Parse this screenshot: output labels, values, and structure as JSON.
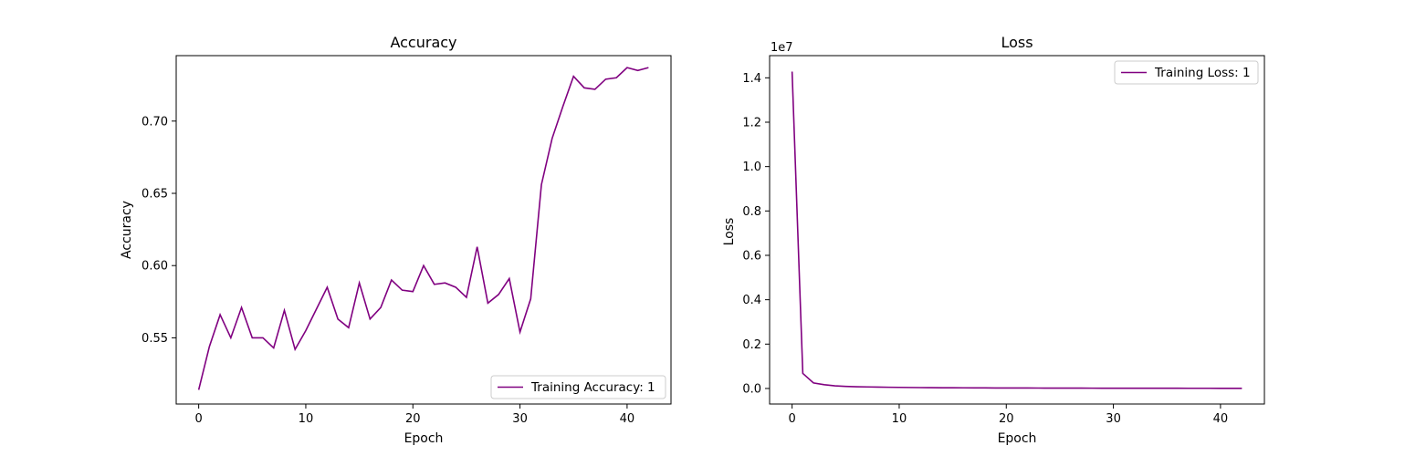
{
  "chart_data": [
    {
      "type": "line",
      "title": "Accuracy",
      "xlabel": "Epoch",
      "ylabel": "Accuracy",
      "xlim": [
        -2.1,
        44.1
      ],
      "ylim": [
        0.5042,
        0.7453
      ],
      "xticks": [
        0,
        10,
        20,
        30,
        40
      ],
      "yticks": [
        0.55,
        0.6,
        0.65,
        0.7
      ],
      "ytick_labels": [
        "0.55",
        "0.60",
        "0.65",
        "0.70"
      ],
      "grid": false,
      "legend_position": "lower-right",
      "color": "#800080",
      "series": [
        {
          "name": "Training Accuracy: 1",
          "x": [
            0,
            1,
            2,
            3,
            4,
            5,
            6,
            7,
            8,
            9,
            10,
            11,
            12,
            13,
            14,
            15,
            16,
            17,
            18,
            19,
            20,
            21,
            22,
            23,
            24,
            25,
            26,
            27,
            28,
            29,
            30,
            31,
            32,
            33,
            34,
            35,
            36,
            37,
            38,
            39,
            40,
            41,
            42
          ],
          "values": [
            0.514,
            0.544,
            0.566,
            0.55,
            0.571,
            0.55,
            0.55,
            0.543,
            0.569,
            0.542,
            0.555,
            0.57,
            0.585,
            0.563,
            0.557,
            0.588,
            0.563,
            0.571,
            0.59,
            0.583,
            0.582,
            0.6,
            0.587,
            0.588,
            0.585,
            0.578,
            0.613,
            0.574,
            0.58,
            0.591,
            0.554,
            0.577,
            0.656,
            0.688,
            0.71,
            0.731,
            0.723,
            0.722,
            0.729,
            0.73,
            0.737,
            0.735,
            0.737
          ]
        }
      ]
    },
    {
      "type": "line",
      "title": "Loss",
      "xlabel": "Epoch",
      "ylabel": "Loss",
      "offset_text": "1e7",
      "xlim": [
        -2.1,
        44.1
      ],
      "ylim": [
        -0.07,
        1.5
      ],
      "xticks": [
        0,
        10,
        20,
        30,
        40
      ],
      "yticks": [
        0.0,
        0.2,
        0.4,
        0.6,
        0.8,
        1.0,
        1.2,
        1.4
      ],
      "ytick_labels": [
        "0.0",
        "0.2",
        "0.4",
        "0.6",
        "0.8",
        "1.0",
        "1.2",
        "1.4"
      ],
      "grid": false,
      "legend_position": "upper-right",
      "color": "#800080",
      "series": [
        {
          "name": "Training Loss: 1",
          "x": [
            0,
            1,
            2,
            3,
            4,
            5,
            6,
            7,
            8,
            9,
            10,
            11,
            12,
            13,
            14,
            15,
            16,
            17,
            18,
            19,
            20,
            21,
            22,
            23,
            24,
            25,
            26,
            27,
            28,
            29,
            30,
            31,
            32,
            33,
            34,
            35,
            36,
            37,
            38,
            39,
            40,
            41,
            42
          ],
          "values": [
            1.428,
            0.068,
            0.025,
            0.017,
            0.012,
            0.0095,
            0.008,
            0.007,
            0.0062,
            0.0055,
            0.005,
            0.0045,
            0.004,
            0.0037,
            0.0034,
            0.0031,
            0.0029,
            0.0027,
            0.0025,
            0.0023,
            0.0022,
            0.0021,
            0.002,
            0.0019,
            0.0018,
            0.0017,
            0.0016,
            0.0015,
            0.0014,
            0.0013,
            0.0012,
            0.0012,
            0.0011,
            0.0011,
            0.001,
            0.001,
            0.001,
            0.0009,
            0.0009,
            0.0009,
            0.0008,
            0.0008,
            0.0008
          ]
        }
      ]
    }
  ]
}
